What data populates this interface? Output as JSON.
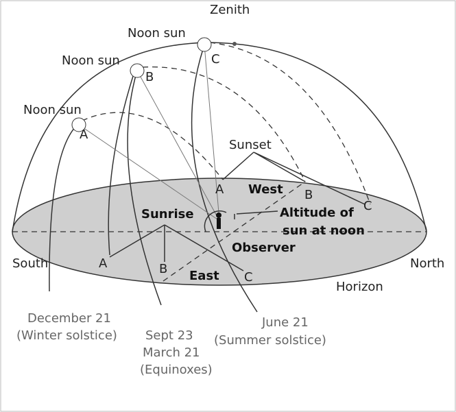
{
  "zenith": "Zenith",
  "noon_suns": [
    {
      "label": "Noon sun",
      "point": "A"
    },
    {
      "label": "Noon sun",
      "point": "B"
    },
    {
      "label": "Noon sun",
      "point": "C"
    }
  ],
  "sunset": {
    "label": "Sunset",
    "points": [
      "A",
      "B",
      "C"
    ]
  },
  "sunrise": {
    "label": "Sunrise",
    "points": [
      "A",
      "B",
      "C"
    ]
  },
  "west": "West",
  "east": "East",
  "south": "South",
  "north": "North",
  "horizon": "Horizon",
  "observer": "Observer",
  "altitude": [
    "Altitude of",
    "sun at noon"
  ],
  "dates": {
    "december": [
      "December 21",
      "(Winter solstice)"
    ],
    "equinox": [
      "Sept 23",
      "March 21",
      "(Equinoxes)"
    ],
    "june": [
      "June 21",
      "(Summer solstice)"
    ]
  }
}
